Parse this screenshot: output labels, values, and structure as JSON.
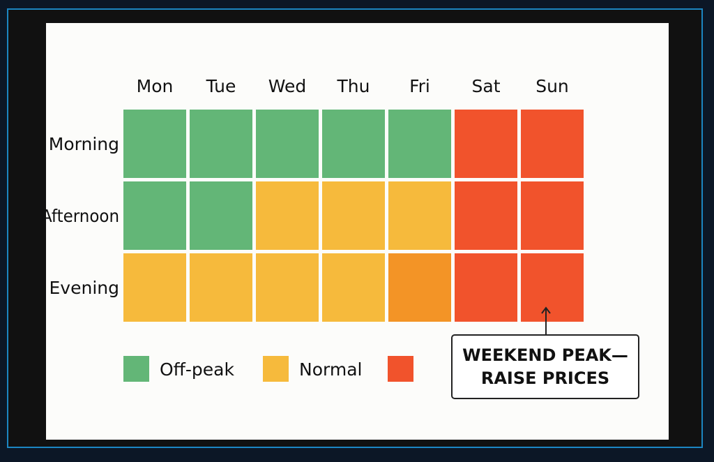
{
  "chart_data": {
    "type": "heatmap",
    "x_categories": [
      "Mon",
      "Tue",
      "Wed",
      "Thu",
      "Fri",
      "Sat",
      "Sun"
    ],
    "y_categories": [
      "Morning",
      "Afternoon",
      "Evening"
    ],
    "levels": {
      "off_peak": "#63b677",
      "normal": "#f6ba3c",
      "busy": "#f39426",
      "peak": "#f1532c"
    },
    "cells": [
      [
        "off_peak",
        "off_peak",
        "off_peak",
        "off_peak",
        "off_peak",
        "peak",
        "peak"
      ],
      [
        "off_peak",
        "off_peak",
        "normal",
        "normal",
        "normal",
        "peak",
        "peak"
      ],
      [
        "normal",
        "normal",
        "normal",
        "normal",
        "busy",
        "peak",
        "peak"
      ]
    ],
    "legend": [
      {
        "label": "Off-peak",
        "color": "#63b677"
      },
      {
        "label": "Normal",
        "color": "#f6ba3c"
      },
      {
        "label": "",
        "color": "#f1532c"
      }
    ],
    "annotation": {
      "text": "WEEKEND PEAK—\nRAISE PRICES",
      "target": {
        "x": "Sun",
        "y": "Evening"
      }
    }
  }
}
